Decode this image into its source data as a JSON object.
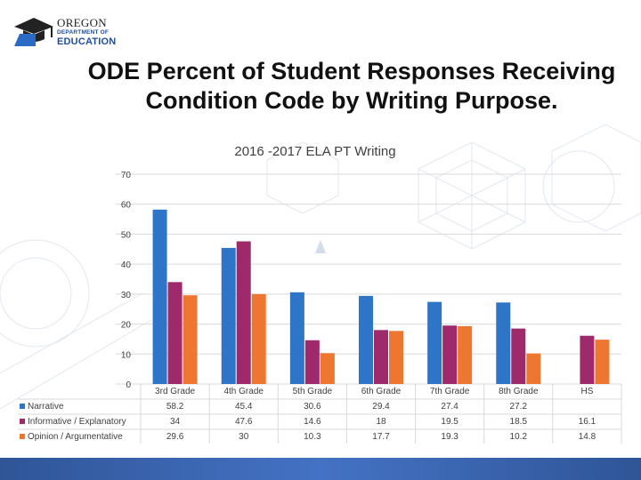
{
  "logo": {
    "line1": "OREGON",
    "line2": "DEPARTMENT OF",
    "line3": "EDUCATION"
  },
  "title": "ODE Percent of Student Responses Receiving Condition Code by Writing Purpose.",
  "chart_data": {
    "type": "bar",
    "title": "2016 -2017 ELA PT Writing",
    "categories": [
      "3rd Grade",
      "4th Grade",
      "5th Grade",
      "6th Grade",
      "7th Grade",
      "8th Grade",
      "HS"
    ],
    "ylim": [
      0,
      70
    ],
    "yticks": [
      0,
      10,
      20,
      30,
      40,
      50,
      60,
      70
    ],
    "gridlines": true,
    "legend_position": "bottom-left data table",
    "series": [
      {
        "name": "Narrative",
        "color": "#2e75c8",
        "values": [
          58.2,
          45.4,
          30.6,
          29.4,
          27.4,
          27.2,
          null
        ],
        "labels": [
          "58.2",
          "45.4",
          "30.6",
          "29.4",
          "27.4",
          "27.2",
          ""
        ]
      },
      {
        "name": "Informative / Explanatory",
        "color": "#9e2a6b",
        "values": [
          34,
          47.6,
          14.6,
          18,
          19.5,
          18.5,
          16.1
        ],
        "labels": [
          "34",
          "47.6",
          "14.6",
          "18",
          "19.5",
          "18.5",
          "16.1"
        ]
      },
      {
        "name": "Opinion / Argumentative",
        "color": "#ed7630",
        "values": [
          29.6,
          30,
          10.3,
          17.7,
          19.3,
          10.2,
          14.8
        ],
        "labels": [
          "29.6",
          "30",
          "10.3",
          "17.7",
          "19.3",
          "10.2",
          "14.8"
        ]
      }
    ]
  }
}
